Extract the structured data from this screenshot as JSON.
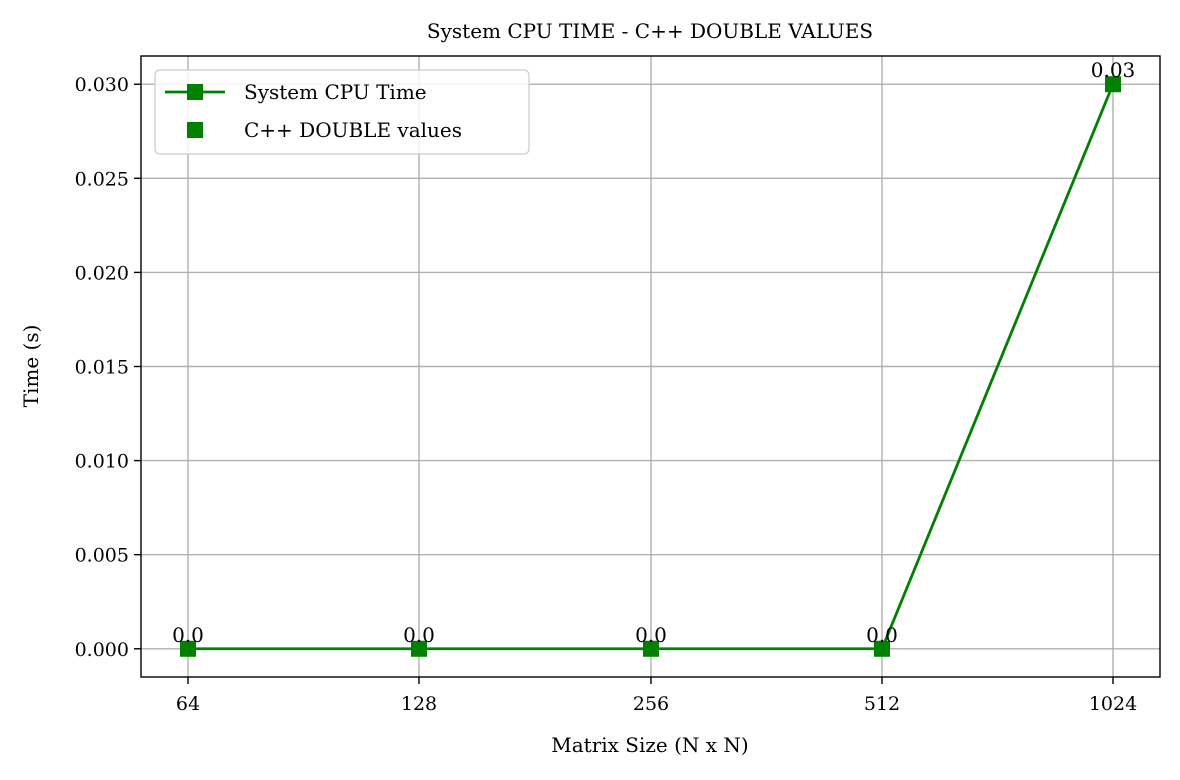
{
  "chart_data": {
    "type": "line",
    "title": "System CPU TIME - C++ DOUBLE VALUES",
    "xlabel": "Matrix Size (N x N)",
    "ylabel": "Time (s)",
    "categories": [
      "64",
      "128",
      "256",
      "512",
      "1024"
    ],
    "series": [
      {
        "name": "System CPU Time",
        "values": [
          0.0,
          0.0,
          0.0,
          0.0,
          0.03
        ],
        "color": "#008000",
        "marker": "square"
      }
    ],
    "marker_legend": {
      "name": "C++ DOUBLE values",
      "color": "#008000",
      "marker": "square"
    },
    "data_labels": [
      "0.0",
      "0.0",
      "0.0",
      "0.0",
      "0.03"
    ],
    "ylim": [
      -0.0015,
      0.0315
    ],
    "yticks": [
      0.0,
      0.005,
      0.01,
      0.015,
      0.02,
      0.025,
      0.03
    ],
    "ytick_labels": [
      "0.000",
      "0.005",
      "0.010",
      "0.015",
      "0.020",
      "0.025",
      "0.030"
    ],
    "grid": true,
    "legend_position": "top-left"
  }
}
